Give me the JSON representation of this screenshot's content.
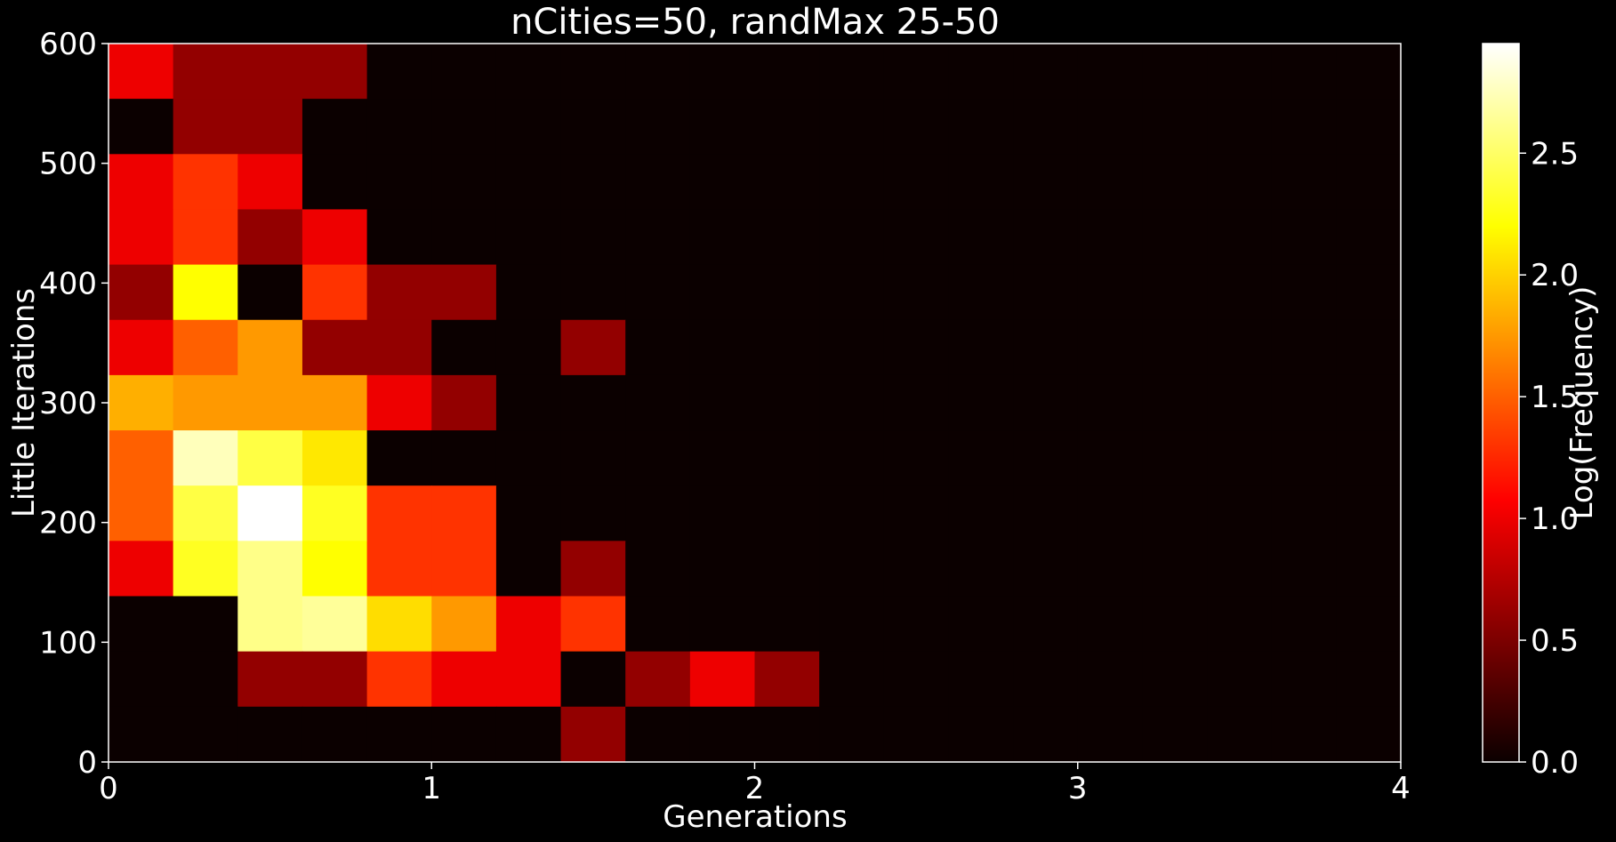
{
  "chart_data": {
    "type": "heatmap",
    "title": "nCities=50, randMax 25-50",
    "xlabel": "Generations",
    "ylabel": "Little Iterations",
    "colorbar_label": "Log(Frequency)",
    "colormap": "hot",
    "background": "#000000",
    "xlim": [
      0,
      4
    ],
    "ylim": [
      0,
      600
    ],
    "clim": [
      0,
      2.95
    ],
    "x_bin_width": 0.2,
    "y_bin_height": 46.15,
    "x_ticks": [
      0,
      1,
      2,
      3,
      4
    ],
    "x_tick_labels": [
      "0",
      "1",
      "2",
      "3",
      "4"
    ],
    "y_ticks": [
      0,
      100,
      200,
      300,
      400,
      500,
      600
    ],
    "y_tick_labels": [
      "0",
      "100",
      "200",
      "300",
      "400",
      "500",
      "600"
    ],
    "colorbar_ticks": [
      0.0,
      0.5,
      1.0,
      1.5,
      2.0,
      2.5
    ],
    "colorbar_tick_labels": [
      "0.0",
      "0.5",
      "1.0",
      "1.5",
      "2.0",
      "2.5"
    ],
    "rows_top_to_bottom": [
      [
        1.0,
        0.6,
        0.6,
        0.6,
        0,
        0,
        0,
        0,
        0,
        0,
        0,
        0,
        0,
        0,
        0,
        0,
        0,
        0,
        0,
        0
      ],
      [
        0,
        0.6,
        0.6,
        0,
        0,
        0,
        0,
        0,
        0,
        0,
        0,
        0,
        0,
        0,
        0,
        0,
        0,
        0,
        0,
        0
      ],
      [
        1.0,
        1.3,
        1.0,
        0,
        0,
        0,
        0,
        0,
        0,
        0,
        0,
        0,
        0,
        0,
        0,
        0,
        0,
        0,
        0,
        0
      ],
      [
        1.0,
        1.3,
        0.6,
        1.0,
        0,
        0,
        0,
        0,
        0,
        0,
        0,
        0,
        0,
        0,
        0,
        0,
        0,
        0,
        0,
        0
      ],
      [
        0.6,
        2.2,
        0,
        1.3,
        0.6,
        0.6,
        0,
        0,
        0,
        0,
        0,
        0,
        0,
        0,
        0,
        0,
        0,
        0,
        0,
        0
      ],
      [
        1.0,
        1.5,
        1.75,
        0.6,
        0.6,
        0,
        0,
        0.6,
        0,
        0,
        0,
        0,
        0,
        0,
        0,
        0,
        0,
        0,
        0,
        0
      ],
      [
        1.85,
        1.75,
        1.75,
        1.75,
        1.0,
        0.6,
        0,
        0,
        0,
        0,
        0,
        0,
        0,
        0,
        0,
        0,
        0,
        0,
        0,
        0
      ],
      [
        1.5,
        2.75,
        2.4,
        2.1,
        0,
        0,
        0,
        0,
        0,
        0,
        0,
        0,
        0,
        0,
        0,
        0,
        0,
        0,
        0,
        0
      ],
      [
        1.5,
        2.4,
        2.95,
        2.3,
        1.3,
        1.3,
        0,
        0,
        0,
        0,
        0,
        0,
        0,
        0,
        0,
        0,
        0,
        0,
        0,
        0
      ],
      [
        1.0,
        2.3,
        2.6,
        2.2,
        1.3,
        1.3,
        0,
        0.6,
        0,
        0,
        0,
        0,
        0,
        0,
        0,
        0,
        0,
        0,
        0,
        0
      ],
      [
        0,
        0,
        2.6,
        2.65,
        2.05,
        1.75,
        1.0,
        1.3,
        0,
        0,
        0,
        0,
        0,
        0,
        0,
        0,
        0,
        0,
        0,
        0
      ],
      [
        0,
        0,
        0.6,
        0.6,
        1.3,
        1.0,
        1.0,
        0,
        0.6,
        1.0,
        0.6,
        0,
        0,
        0,
        0,
        0,
        0,
        0,
        0,
        0
      ],
      [
        0,
        0,
        0,
        0,
        0,
        0,
        0,
        0.6,
        0,
        0,
        0,
        0,
        0,
        0,
        0,
        0,
        0,
        0,
        0,
        0
      ]
    ]
  }
}
